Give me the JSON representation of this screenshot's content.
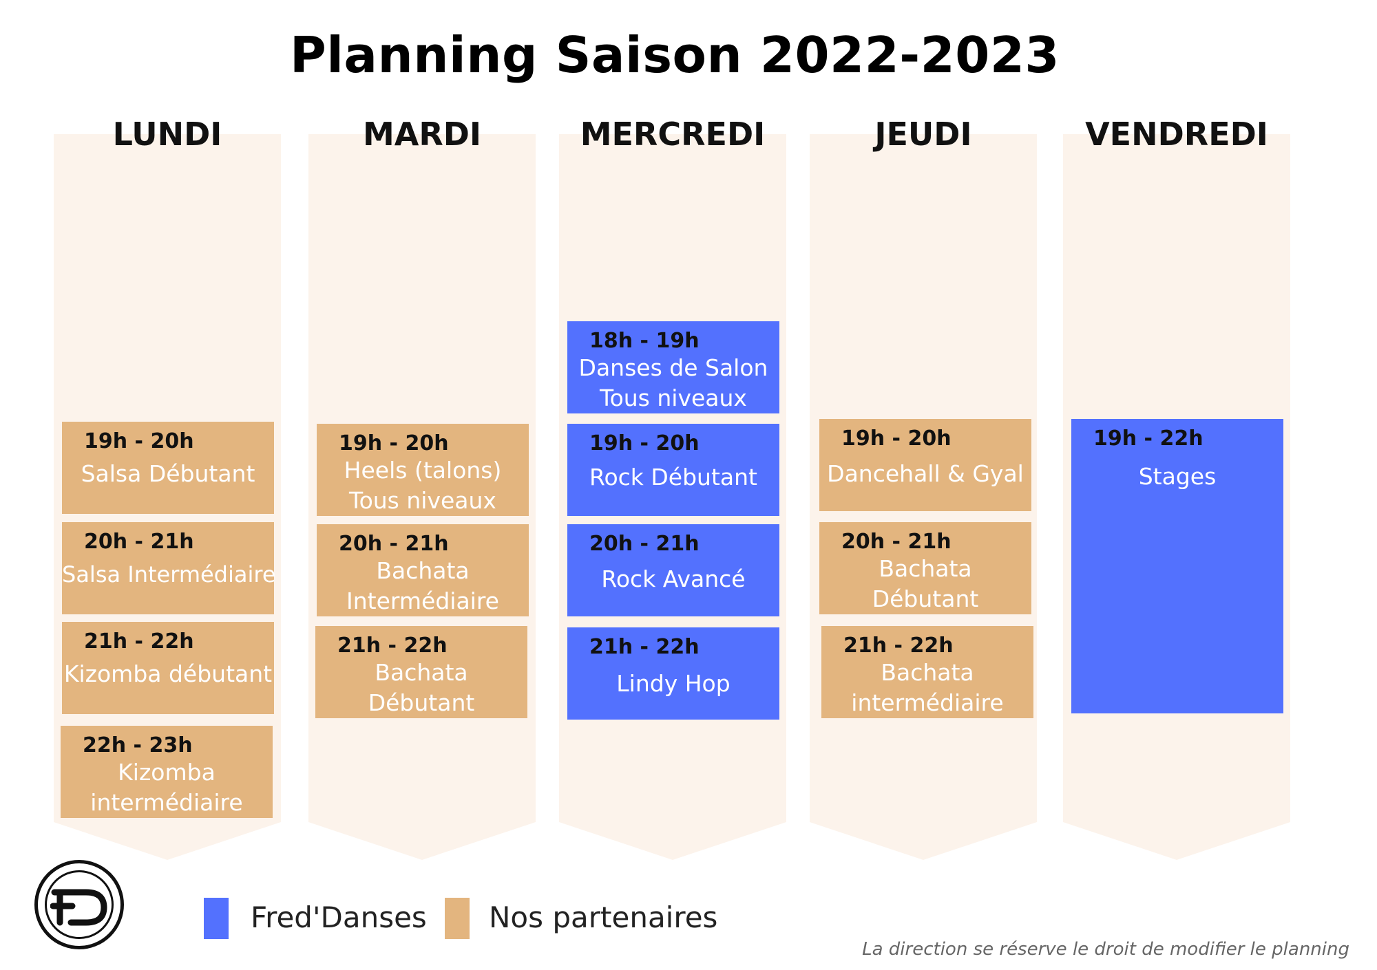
{
  "title": "Planning Saison 2022-2023",
  "colors": {
    "fred": "#5371fe",
    "partner": "#e3b57f",
    "column_bg": "#fcf3eb"
  },
  "days": [
    {
      "label": "LUNDI",
      "slots": [
        {
          "time": "19h - 20h",
          "name": "Salsa Débutant",
          "type": "partner"
        },
        {
          "time": "20h - 21h",
          "name": "Salsa Intermédiaire",
          "type": "partner"
        },
        {
          "time": "21h - 22h",
          "name": "Kizomba débutant",
          "type": "partner"
        },
        {
          "time": "22h - 23h",
          "name": "Kizomba\nintermédiaire",
          "type": "partner"
        }
      ]
    },
    {
      "label": "MARDI",
      "slots": [
        {
          "time": "19h - 20h",
          "name": "Heels (talons)\nTous niveaux",
          "type": "partner"
        },
        {
          "time": "20h - 21h",
          "name": "Bachata\nIntermédiaire",
          "type": "partner"
        },
        {
          "time": "21h - 22h",
          "name": "Bachata\nDébutant",
          "type": "partner"
        }
      ]
    },
    {
      "label": "MERCREDI",
      "slots": [
        {
          "time": "18h - 19h",
          "name": "Danses de Salon\nTous niveaux",
          "type": "fred"
        },
        {
          "time": "19h - 20h",
          "name": "Rock Débutant",
          "type": "fred"
        },
        {
          "time": "20h - 21h",
          "name": "Rock Avancé",
          "type": "fred"
        },
        {
          "time": "21h - 22h",
          "name": "Lindy Hop",
          "type": "fred"
        }
      ]
    },
    {
      "label": "JEUDI",
      "slots": [
        {
          "time": "19h - 20h",
          "name": "Dancehall & Gyal",
          "type": "partner"
        },
        {
          "time": "20h - 21h",
          "name": "Bachata\nDébutant",
          "type": "partner"
        },
        {
          "time": "21h - 22h",
          "name": "Bachata\nintermédiaire",
          "type": "partner"
        }
      ]
    },
    {
      "label": "VENDREDI",
      "slots": [
        {
          "time": "19h - 22h",
          "name": "Stages",
          "type": "fred"
        }
      ]
    }
  ],
  "legend": {
    "fred": "Fred'Danses",
    "partner": "Nos partenaires"
  },
  "footnote": "La direction se réserve le droit de modifier le planning"
}
